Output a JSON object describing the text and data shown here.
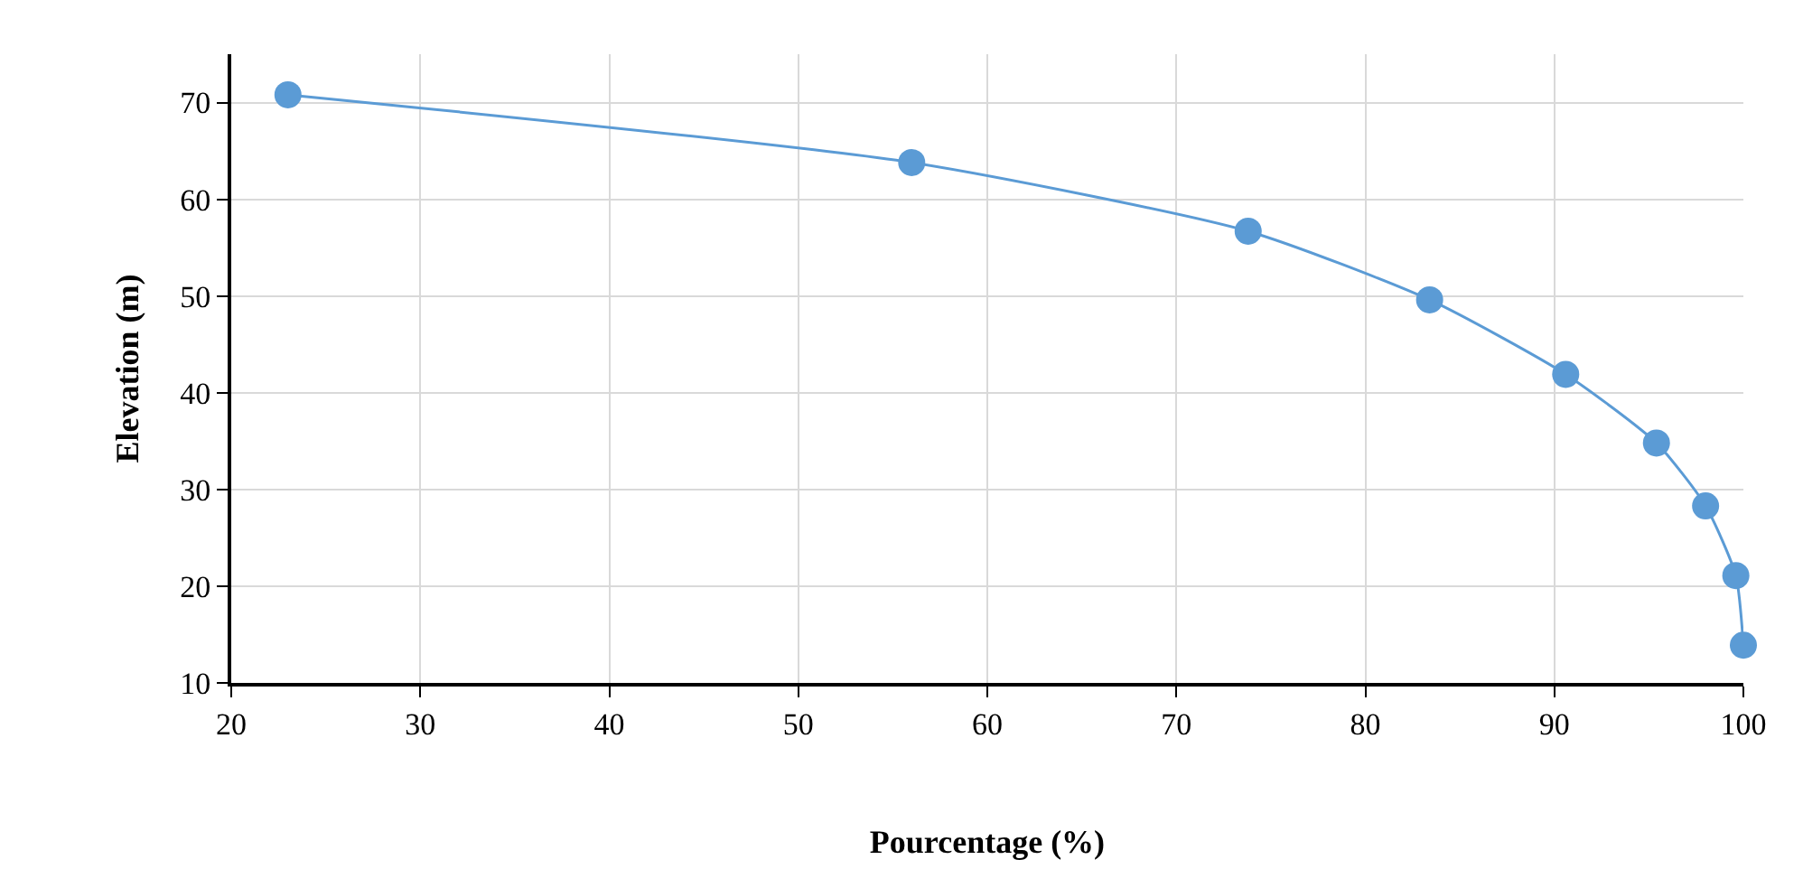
{
  "chart_data": {
    "type": "line",
    "xlabel": "Pourcentage (%)",
    "ylabel": "Elevation (m)",
    "x": [
      23.0,
      56.0,
      73.8,
      83.4,
      90.6,
      95.4,
      98.0,
      99.6,
      100
    ],
    "series": [
      {
        "color": "#5b9bd5",
        "values": [
          70.8,
          63.8,
          56.7,
          49.6,
          41.9,
          34.8,
          28.3,
          21.1,
          13.9
        ]
      }
    ],
    "xlim": [
      20,
      100
    ],
    "xticks": [
      20,
      30,
      40,
      50,
      60,
      70,
      80,
      90,
      100
    ],
    "ylim": [
      10,
      75
    ],
    "yticks": [
      10,
      20,
      30,
      40,
      50,
      60,
      70
    ],
    "grid": true,
    "marker": "circle",
    "line_style": "solid"
  }
}
